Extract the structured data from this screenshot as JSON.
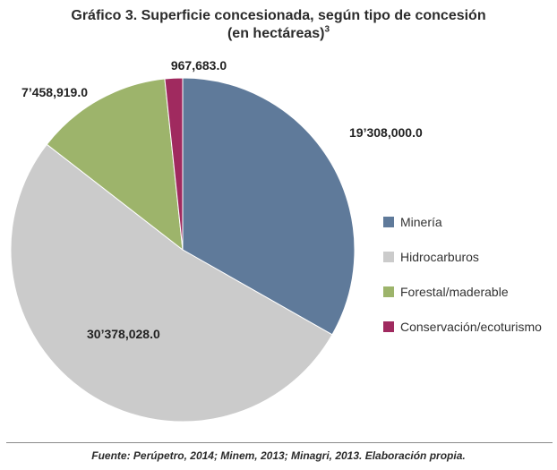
{
  "header": {
    "title_line1": "Gráfico 3. Superficie concesionada, según tipo de concesión",
    "title_line2": "(en hectáreas)",
    "title_superscript": "3"
  },
  "chart_data": {
    "type": "pie",
    "title": "Gráfico 3. Superficie concesionada, según tipo de concesión (en hectáreas)",
    "slices": [
      {
        "name": "Minería",
        "value": 19308000.0,
        "label": "19’308,000.0",
        "color": "#5f7a9a"
      },
      {
        "name": "Hidrocarburos",
        "value": 30378028.0,
        "label": "30’378,028.0",
        "color": "#cbcbcb"
      },
      {
        "name": "Forestal/maderable",
        "value": 7458919.0,
        "label": "7’458,919.0",
        "color": "#9db46b"
      },
      {
        "name": "Conservación/ecoturismo",
        "value": 967683.0,
        "label": "967,683.0",
        "color": "#a02a5f"
      }
    ],
    "legend_position": "right"
  },
  "legend": {
    "items": [
      {
        "label": "Minería",
        "color": "#5f7a9a"
      },
      {
        "label": "Hidrocarburos",
        "color": "#cbcbcb"
      },
      {
        "label": "Forestal/maderable",
        "color": "#9db46b"
      },
      {
        "label": "Conservación/ecoturismo",
        "color": "#a02a5f"
      }
    ]
  },
  "footer": {
    "source": "Fuente: Perúpetro, 2014; Minem, 2013; Minagri, 2013. Elaboración propia."
  }
}
